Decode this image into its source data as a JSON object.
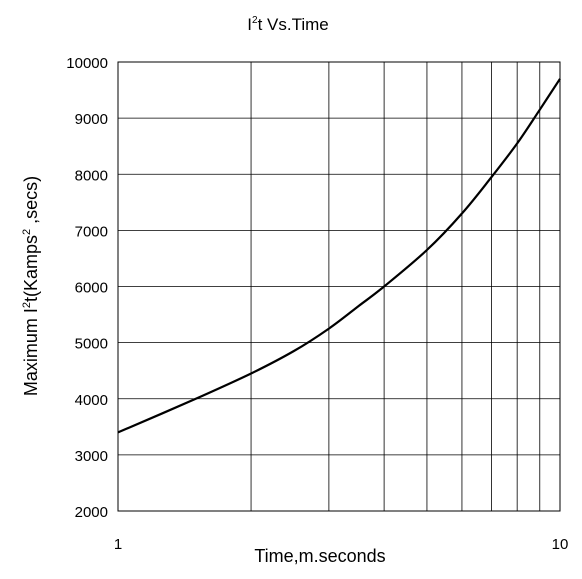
{
  "chart_data": {
    "type": "line",
    "title": {
      "base": "I",
      "sup": "2",
      "rest": "t  Vs.Time"
    },
    "xlabel": "Time,m.seconds",
    "ylabel": {
      "p1": "Maximum I",
      "sup1": "2",
      "p2": "t(Kamps",
      "sup2": "2",
      "p3": " ,secs)"
    },
    "x_scale": "log",
    "xlim": [
      1,
      10
    ],
    "ylim": [
      2000,
      10000
    ],
    "x_ticks": [
      "1",
      "10"
    ],
    "y_ticks": [
      "2000",
      "3000",
      "4000",
      "5000",
      "6000",
      "7000",
      "8000",
      "9000",
      "10000"
    ],
    "grid": true,
    "series": [
      {
        "x": [
          1,
          1.5,
          2,
          2.5,
          3,
          3.5,
          4,
          5,
          6,
          7,
          8,
          9,
          10
        ],
        "y": [
          3400,
          4000,
          4450,
          4850,
          5250,
          5650,
          6000,
          6650,
          7300,
          7950,
          8550,
          9150,
          9700
        ]
      }
    ]
  }
}
